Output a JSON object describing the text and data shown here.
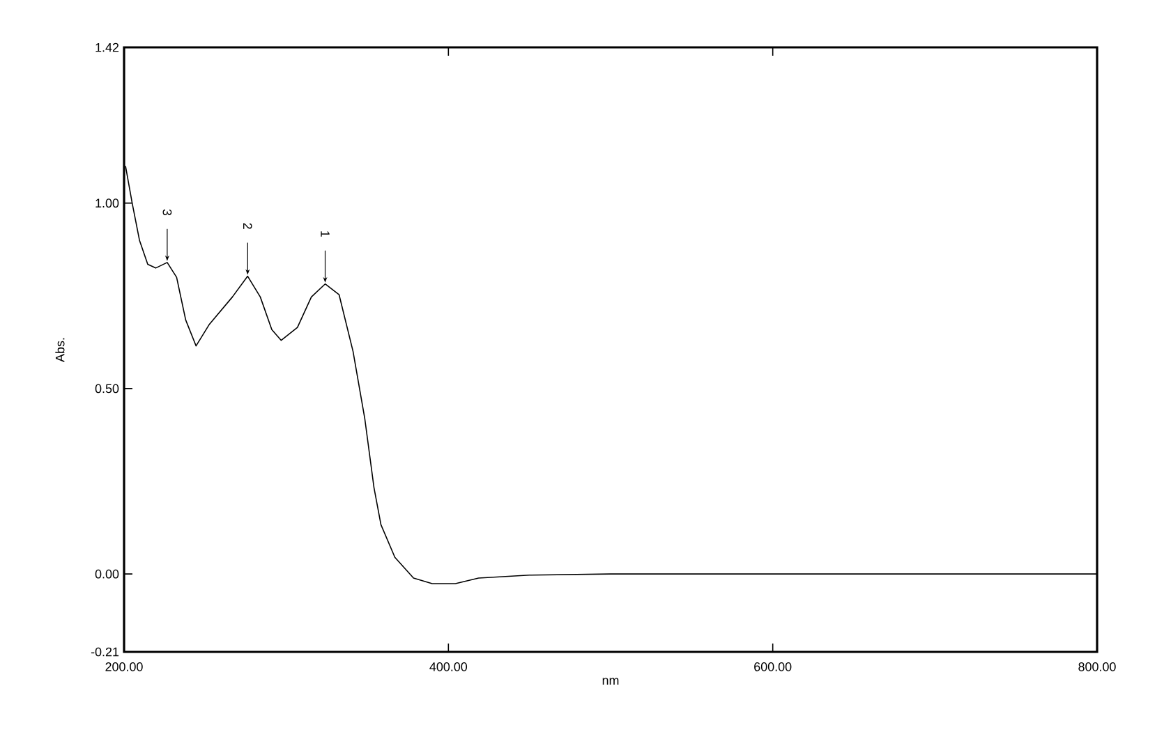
{
  "chart_data": {
    "type": "line",
    "xlabel": "nm",
    "ylabel": "Abs.",
    "xlim": [
      200,
      800
    ],
    "ylim": [
      -0.21,
      1.42
    ],
    "xticks": [
      {
        "value": 200,
        "label": "200.00"
      },
      {
        "value": 400,
        "label": "400.00"
      },
      {
        "value": 600,
        "label": "600.00"
      },
      {
        "value": 800,
        "label": "800.00"
      }
    ],
    "yticks": [
      {
        "value": -0.21,
        "label": "-0.21"
      },
      {
        "value": 0,
        "label": "0.00"
      },
      {
        "value": 0.5,
        "label": "0.50"
      },
      {
        "value": 1.0,
        "label": "1.00"
      },
      {
        "value": 1.42,
        "label": "1.42"
      }
    ],
    "grid": false,
    "marker": "none",
    "line_style": "solid",
    "series": [
      {
        "color": "#000000",
        "x": [
          200.9,
          205,
          209.5,
          214.6,
          219.5,
          226.6,
          232.4,
          238,
          244.4,
          252.4,
          266.8,
          276.2,
          284,
          291.1,
          296.9,
          306.9,
          315.5,
          324,
          332.6,
          341.2,
          348.4,
          354.1,
          358.4,
          367,
          378.5,
          390,
          404.3,
          418.6,
          450,
          500,
          600,
          700,
          800
        ],
        "values": [
          1.1,
          1.0,
          0.9,
          0.835,
          0.825,
          0.84,
          0.8,
          0.685,
          0.615,
          0.672,
          0.747,
          0.803,
          0.747,
          0.659,
          0.63,
          0.665,
          0.747,
          0.782,
          0.753,
          0.6,
          0.42,
          0.233,
          0.133,
          0.045,
          -0.011,
          -0.026,
          -0.026,
          -0.011,
          -0.003,
          0.0,
          0.0,
          0.0,
          0.0
        ]
      }
    ],
    "annotations": [
      {
        "text": "3",
        "x": 226.6,
        "y": 0.84
      },
      {
        "text": "2",
        "x": 276.2,
        "y": 0.803
      },
      {
        "text": "1",
        "x": 324,
        "y": 0.782
      }
    ]
  }
}
